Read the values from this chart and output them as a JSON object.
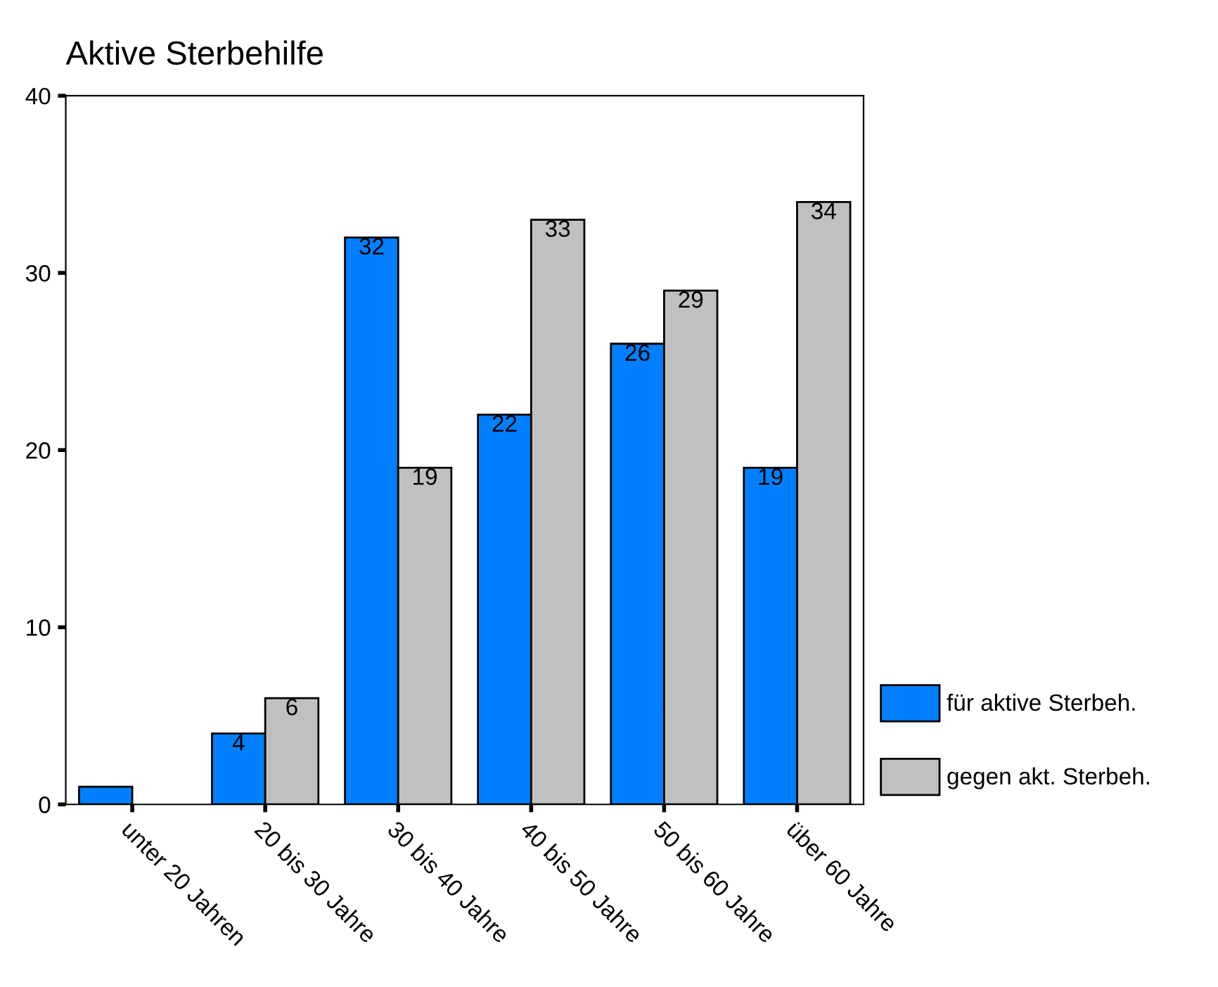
{
  "chart_data": {
    "type": "bar",
    "title": "Aktive Sterbehilfe",
    "categories": [
      "unter 20 Jahren",
      "20 bis 30 Jahre",
      "30 bis 40 Jahre",
      "40 bis 50 Jahre",
      "50 bis 60 Jahre",
      "über 60 Jahre"
    ],
    "series": [
      {
        "name": "für aktive Sterbeh.",
        "color": "#0080ff",
        "values": [
          1,
          4,
          32,
          22,
          26,
          19
        ],
        "value_labels": [
          null,
          "4",
          "32",
          "22",
          "26",
          "19"
        ]
      },
      {
        "name": "gegen akt. Sterbeh.",
        "color": "#c0c0c0",
        "values": [
          null,
          6,
          19,
          33,
          29,
          34
        ],
        "value_labels": [
          null,
          "6",
          "19",
          "33",
          "29",
          "34"
        ]
      }
    ],
    "ylim": [
      0,
      40
    ],
    "yticks": [
      0,
      10,
      20,
      30,
      40
    ],
    "grid": false,
    "legend": "bottom right"
  }
}
